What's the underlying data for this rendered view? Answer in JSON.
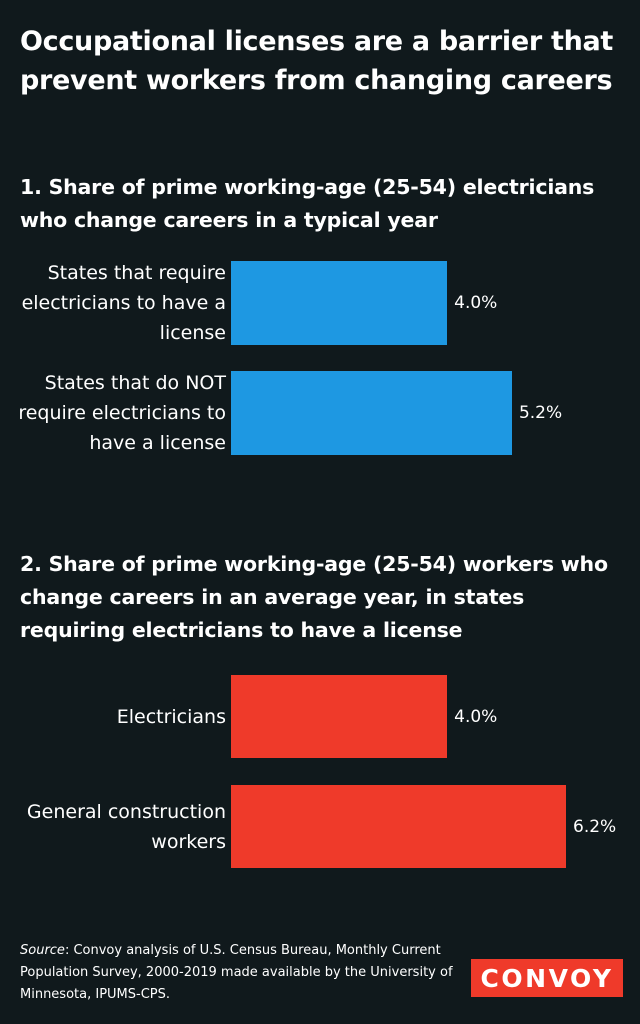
{
  "title": "Occupational licenses are a barrier that prevent workers from changing careers",
  "colors": {
    "background": "#10191c",
    "section1_bar": "#1e98e2",
    "section2_bar": "#ef3a2a",
    "logo_bg": "#ef3a2a",
    "text": "#ffffff"
  },
  "chart_data": [
    {
      "type": "bar",
      "orientation": "horizontal",
      "title": "1. Share of prime working-age (25-54) electricians who change careers in a typical year",
      "categories": [
        "States that require electricians to have a license",
        "States that do NOT require electricians to have a license"
      ],
      "values": [
        4.0,
        5.2
      ],
      "value_labels": [
        "4.0%",
        "5.2%"
      ],
      "xlim": [
        0,
        6.2
      ]
    },
    {
      "type": "bar",
      "orientation": "horizontal",
      "title": "2. Share of prime working-age (25-54) workers who change careers in an average year, in states requiring electricians to have a license",
      "categories": [
        "Electricians",
        "General construction workers"
      ],
      "values": [
        4.0,
        6.2
      ],
      "value_labels": [
        "4.0%",
        "6.2%"
      ],
      "xlim": [
        0,
        6.2
      ]
    }
  ],
  "source": {
    "prefix": "Source",
    "text": ": Convoy analysis of U.S. Census Bureau, Monthly Current Population Survey, 2000-2019 made available by the University of Minnesota, IPUMS-CPS."
  },
  "logo": {
    "text": "CONVOY"
  }
}
